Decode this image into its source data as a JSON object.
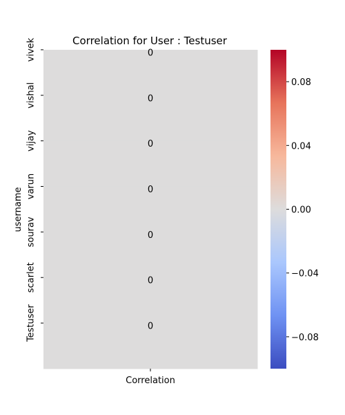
{
  "chart_data": {
    "type": "heatmap",
    "title": "Correlation for User : Testuser",
    "xlabel": "",
    "ylabel": "username",
    "columns": [
      "Correlation"
    ],
    "rows": [
      "vivek",
      "vishal",
      "vijay",
      "varun",
      "sourav",
      "scarlet",
      "Testuser"
    ],
    "values": [
      [
        0
      ],
      [
        0
      ],
      [
        0
      ],
      [
        0
      ],
      [
        0
      ],
      [
        0
      ],
      [
        0
      ]
    ],
    "cell_labels": [
      "0",
      "0",
      "0",
      "0",
      "0",
      "0",
      "0"
    ],
    "colorbar": {
      "colormap": "coolwarm",
      "range": [
        -0.1,
        0.1
      ],
      "ticks": [
        0.08,
        0.04,
        0.0,
        -0.04,
        -0.08
      ],
      "tick_labels": [
        "0.08",
        "0.04",
        "0.00",
        "−0.04",
        "−0.08"
      ],
      "colors": [
        "#3b4cc0",
        "#6f92f3",
        "#aac7fd",
        "#dddcdc",
        "#f7b89c",
        "#e7745b",
        "#b40426"
      ]
    },
    "cell_color": "#dddcdc",
    "grid": false
  }
}
